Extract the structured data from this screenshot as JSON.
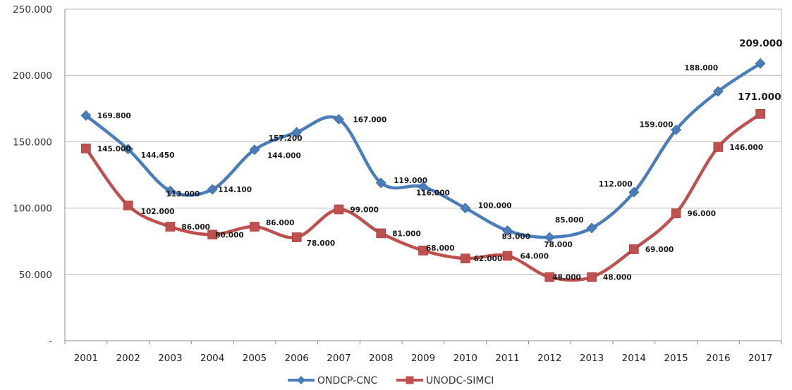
{
  "chart_data": {
    "type": "line",
    "title": "",
    "xlabel": "",
    "ylabel": "",
    "ylim": [
      0,
      250000
    ],
    "y_ticks": [
      "-",
      "50.000",
      "100.000",
      "150.000",
      "200.000",
      "250.000"
    ],
    "grid": true,
    "legend_position": "bottom",
    "x": [
      "2001",
      "2002",
      "2003",
      "2004",
      "2005",
      "2006",
      "2007",
      "2008",
      "2009",
      "2010",
      "2011",
      "2012",
      "2013",
      "2014",
      "2015",
      "2016",
      "2017"
    ],
    "series": [
      {
        "name": "ONDCP-CNC",
        "color": "#4a7ebb",
        "marker": "diamond",
        "values": [
          169800,
          144450,
          113000,
          114100,
          144000,
          157200,
          167000,
          119000,
          116000,
          100000,
          83000,
          78000,
          85000,
          112000,
          159000,
          188000,
          209000
        ],
        "labels": [
          "169.800",
          "144.450",
          "113.000",
          "114.100",
          "144.000",
          "157.200",
          "167.000",
          "119.000",
          "116.000",
          "100.000",
          "83.000",
          "78.000",
          "85.000",
          "112.000",
          "159.000",
          "188.000",
          "209.000"
        ]
      },
      {
        "name": "UNODC-SIMCI",
        "color": "#c0504d",
        "marker": "square",
        "values": [
          145000,
          102000,
          86000,
          80000,
          86000,
          78000,
          99000,
          81000,
          68000,
          62000,
          64000,
          48000,
          48000,
          69000,
          96000,
          146000,
          171000
        ],
        "labels": [
          "145.000",
          "102.000",
          "86.000",
          "80.000",
          "86.000",
          "78.000",
          "99.000",
          "81.000",
          "68.000",
          "62.000",
          "64.000",
          "48.000",
          "48.000",
          "69.000",
          "96.000",
          "146.000",
          "171.000"
        ]
      }
    ]
  }
}
